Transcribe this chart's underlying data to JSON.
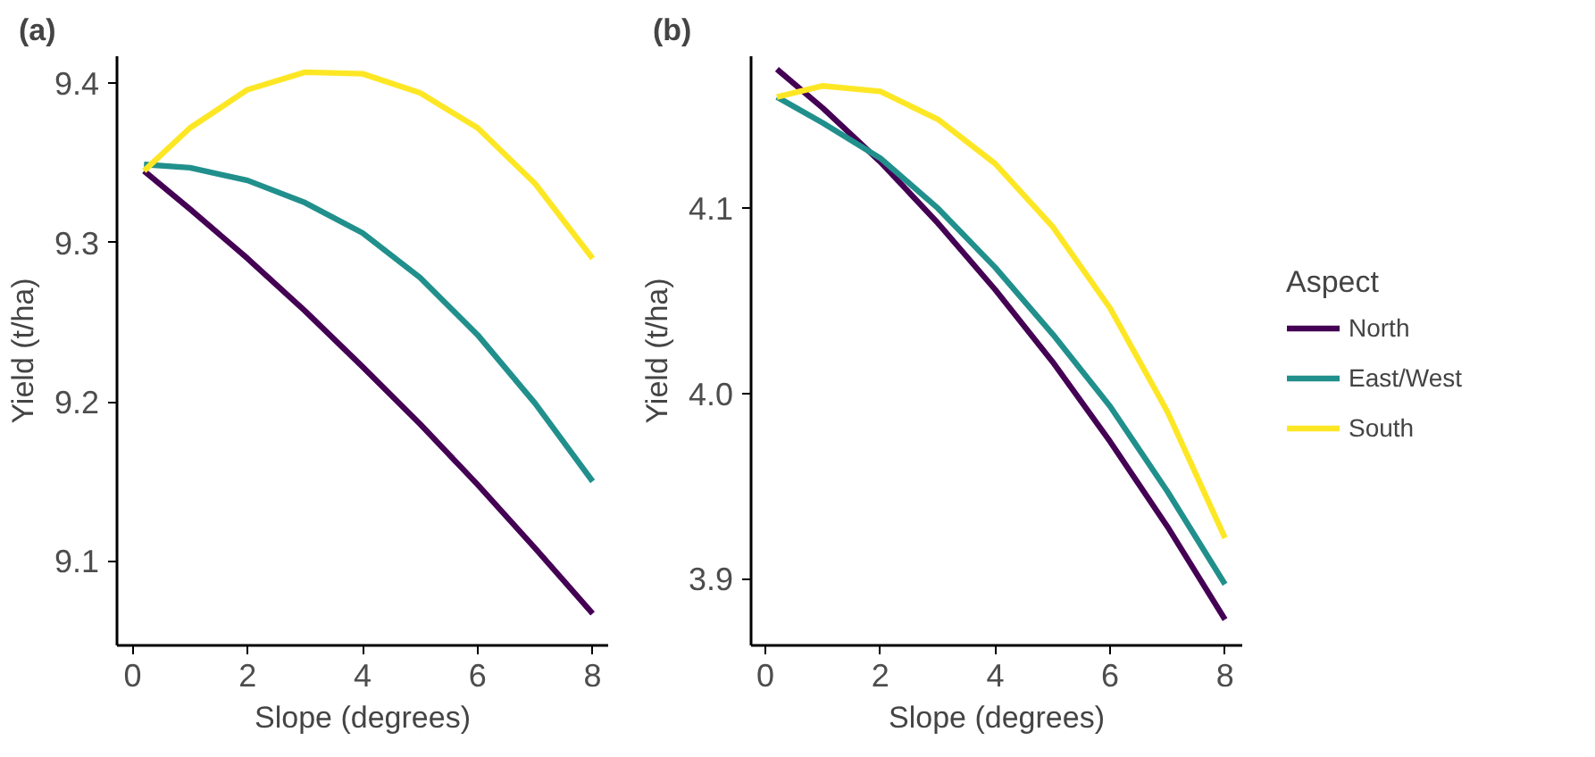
{
  "chart_data": [
    {
      "type": "line",
      "title": "(a)",
      "xlabel": "Slope (degrees)",
      "ylabel": "Yield (t/ha)",
      "x": [
        0.2,
        1,
        2,
        3,
        4,
        5,
        6,
        7,
        8
      ],
      "xlim": [
        -0.27,
        8.27
      ],
      "ylim": [
        9.047,
        9.417
      ],
      "xticks": [
        0,
        2,
        4,
        6,
        8
      ],
      "yticks": [
        9.1,
        9.2,
        9.3,
        9.4
      ],
      "grid": false,
      "series": [
        {
          "color": "#440154",
          "values": [
            9.345,
            9.321,
            9.29,
            9.257,
            9.222,
            9.186,
            9.148,
            9.108,
            9.067
          ]
        },
        {
          "color": "#21908C",
          "values": [
            9.349,
            9.347,
            9.339,
            9.325,
            9.306,
            9.278,
            9.242,
            9.199,
            9.15
          ]
        },
        {
          "color": "#FDE725",
          "values": [
            9.345,
            9.372,
            9.396,
            9.407,
            9.406,
            9.394,
            9.372,
            9.337,
            9.29
          ]
        }
      ]
    },
    {
      "type": "line",
      "title": "(b)",
      "xlabel": "Slope (degrees)",
      "ylabel": "Yield (t/ha)",
      "legend_title": "Aspect",
      "x": [
        0.2,
        1,
        2,
        3,
        4,
        5,
        6,
        7,
        8
      ],
      "xlim": [
        -0.25,
        8.3
      ],
      "ylim": [
        3.864,
        4.182
      ],
      "xticks": [
        0,
        2,
        4,
        6,
        8
      ],
      "yticks": [
        3.9,
        {
          "value": 4.0,
          "label": "4.0"
        },
        4.1
      ],
      "grid": false,
      "legend": "right",
      "series": [
        {
          "name": "North",
          "color": "#440154",
          "values": [
            4.175,
            4.154,
            4.125,
            4.092,
            4.056,
            4.017,
            3.974,
            3.928,
            3.878
          ]
        },
        {
          "name": "East/West",
          "color": "#21908C",
          "values": [
            4.16,
            4.146,
            4.127,
            4.1,
            4.068,
            4.032,
            3.993,
            3.947,
            3.897
          ]
        },
        {
          "name": "South",
          "color": "#FDE725",
          "values": [
            4.16,
            4.166,
            4.163,
            4.148,
            4.124,
            4.09,
            4.046,
            3.99,
            3.922
          ]
        }
      ]
    }
  ]
}
